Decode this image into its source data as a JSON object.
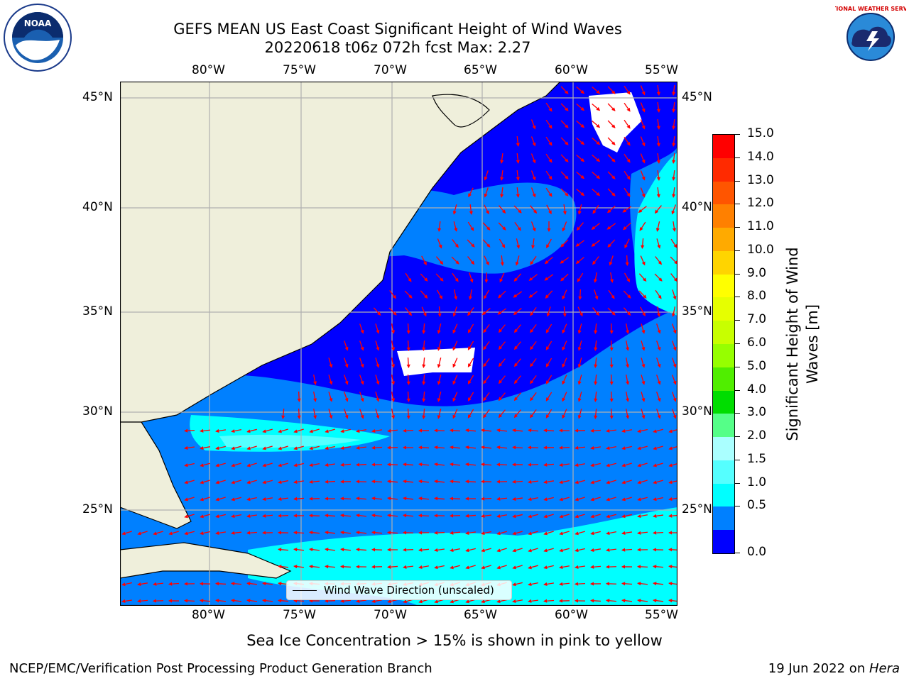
{
  "header": {
    "title_line1": "GEFS MEAN US East Coast Significant Height of Wind Waves",
    "title_line2": "20220618 t06z 072h fcst    Max: 2.27"
  },
  "logos": {
    "left": "NOAA",
    "right": "NATIONAL WEATHER SERVICE"
  },
  "map": {
    "lon_labels": [
      "80°W",
      "75°W",
      "70°W",
      "65°W",
      "60°W",
      "55°W"
    ],
    "lat_labels": [
      "45°N",
      "40°N",
      "35°N",
      "30°N",
      "25°N"
    ],
    "legend_text": "Wind Wave Direction (unscaled)"
  },
  "colorbar": {
    "ticks": [
      "15.0",
      "14.0",
      "13.0",
      "12.0",
      "11.0",
      "10.0",
      "9.0",
      "8.0",
      "7.0",
      "6.0",
      "5.0",
      "4.0",
      "3.0",
      "2.0",
      "1.5",
      "1.0",
      "0.5",
      "0.0"
    ],
    "colors": [
      "#ff0000",
      "#ff2a00",
      "#ff5500",
      "#ff8000",
      "#ffaa00",
      "#ffd400",
      "#ffff00",
      "#e6ff00",
      "#c8ff00",
      "#96ff00",
      "#50ee00",
      "#00dd00",
      "#55ff88",
      "#aaffff",
      "#55ffff",
      "#00ffff",
      "#0080ff",
      "#0000ff"
    ],
    "label_line1": "Significant Height of Wind",
    "label_line2": "Waves [m]"
  },
  "footer": {
    "sub_caption": "Sea Ice Concentration > 15% is shown in pink to yellow",
    "left": "NCEP/EMC/Verification Post Processing Product Generation Branch",
    "right_date": "19 Jun 2022 on ",
    "right_host": "Hera"
  }
}
